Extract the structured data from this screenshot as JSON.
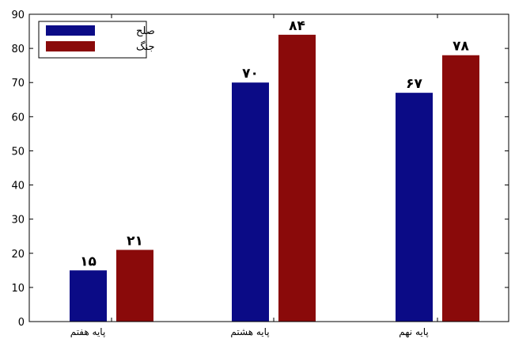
{
  "chart_data": {
    "type": "bar",
    "categories": [
      "پایه هفتم",
      "پایه هشتم",
      "پایه نهم"
    ],
    "series": [
      {
        "name": "صلح",
        "values": [
          15,
          70,
          67
        ],
        "value_labels": [
          "۱۵",
          "۷۰",
          "۶۷"
        ],
        "color": "#0b0b86"
      },
      {
        "name": "جنگ",
        "values": [
          21,
          84,
          78
        ],
        "value_labels": [
          "۲۱",
          "۸۴",
          "۷۸"
        ],
        "color": "#8a0a0a"
      }
    ],
    "ylim": [
      0,
      90
    ],
    "yticks": [
      0,
      10,
      20,
      30,
      40,
      50,
      60,
      70,
      80,
      90
    ],
    "legend_position": "top-left",
    "grid": false
  }
}
